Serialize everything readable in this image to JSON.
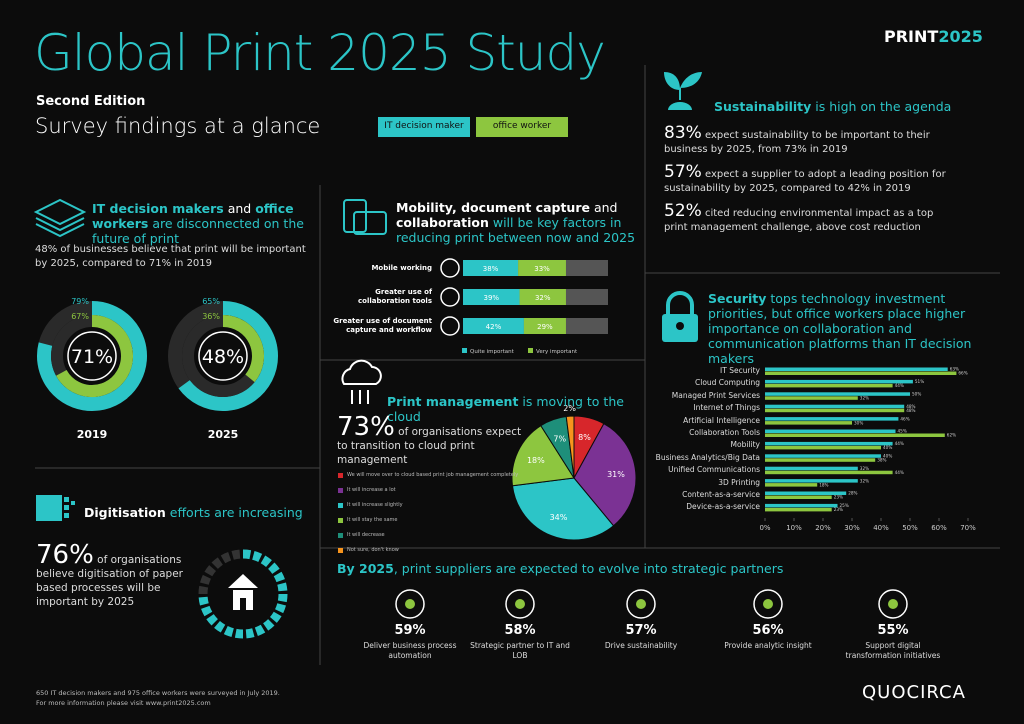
{
  "header": {
    "title": "Global Print 2025 Study",
    "edition": "Second Edition",
    "subtitle": "Survey findings at a glance",
    "brand": [
      "PRINT",
      "2025"
    ]
  },
  "disconnect": {
    "heading": [
      "IT decision makers",
      " and ",
      "office workers",
      " are disconnected on the future of print"
    ],
    "text": "48% of businesses believe that print will be important by 2025, compared to 71% in 2019"
  },
  "digitisation": {
    "heading": [
      "Digitisation",
      " efforts are increasing"
    ],
    "stat": "76%",
    "text": "of organisations believe digitisation of paper based processes will be important by 2025"
  },
  "mobility": {
    "heading": [
      "Mobility, document capture",
      " and ",
      "collaboration",
      " will be key factors in reducing print between now and 2025"
    ]
  },
  "cloud": {
    "heading": [
      "Print management",
      " is moving to the cloud"
    ],
    "stat": "73%",
    "text": "of organisations expect to transition to cloud print management"
  },
  "sustainability": {
    "heading": [
      "Sustainability",
      " is high on the agenda"
    ],
    "items": [
      {
        "stat": "83%",
        "text": "expect sustainability to be important to their business by 2025, from 73% in 2019"
      },
      {
        "stat": "57%",
        "text": "expect a supplier to adopt a leading position for sustainability by 2025, compared to 42% in 2019"
      },
      {
        "stat": "52%",
        "text": "cited reducing environmental impact as a top print management challenge, above cost reduction"
      }
    ]
  },
  "security": {
    "heading": [
      "Security",
      " tops technology investment priorities, but office workers place higher importance on collaboration and communication platforms than IT decision makers"
    ]
  },
  "partners": {
    "heading": [
      "By 2025",
      ", print suppliers are expected to evolve into strategic partners"
    ],
    "items": [
      {
        "stat": "59%",
        "text": "Deliver business process automation"
      },
      {
        "stat": "58%",
        "text": "Strategic partner to IT and LOB"
      },
      {
        "stat": "57%",
        "text": "Drive sustainability"
      },
      {
        "stat": "56%",
        "text": "Provide analytic insight"
      },
      {
        "stat": "55%",
        "text": "Support digital transformation initiatives"
      }
    ]
  },
  "footer": {
    "note": [
      "650 IT decision makers and 975 office workers were surveyed in July 2019.",
      "For more information please visit www.print2025.com"
    ],
    "logo": "QUOCIRCA"
  },
  "chart_data": [
    {
      "type": "donut",
      "label": "2019",
      "total": 71,
      "total_label": "71%",
      "track_color": "#2a2a2a",
      "series": [
        {
          "name": "IT decision maker",
          "color": "#2cc5c7",
          "values": [
            79
          ],
          "value_labels": [
            "79%"
          ]
        },
        {
          "name": "office worker",
          "color": "#8dc63f",
          "values": [
            67
          ],
          "value_labels": [
            "67%"
          ]
        }
      ]
    },
    {
      "type": "donut",
      "label": "2025",
      "total": 48,
      "total_label": "48%",
      "track_color": "#2a2a2a",
      "series": [
        {
          "color": "#2cc5c7",
          "values": [
            65
          ],
          "value_labels": [
            "65%"
          ]
        },
        {
          "color": "#8dc63f",
          "values": [
            36
          ],
          "value_labels": [
            "36%"
          ]
        }
      ]
    },
    {
      "type": "stacked-bar",
      "categories": [
        "Mobile working",
        "Greater use of collaboration tools",
        "Greater use of document capture and workflow"
      ],
      "series": [
        {
          "name": "Quite important",
          "color": "#2cc5c7",
          "values": [
            38,
            39,
            42
          ],
          "value_labels": [
            "38%",
            "39%",
            "42%"
          ]
        },
        {
          "name": "Very important",
          "color": "#8dc63f",
          "values": [
            33,
            32,
            29
          ],
          "value_labels": [
            "33%",
            "32%",
            "29%"
          ]
        }
      ],
      "xlim": [
        0,
        100
      ],
      "track_color": "#555555"
    },
    {
      "type": "pie",
      "categories": [
        "We will move over to cloud based print job management completely",
        "It will increase a lot",
        "It will increase slightly",
        "It will stay the same",
        "It will decrease",
        "Not sure, don't know"
      ],
      "values": [
        8,
        31,
        34,
        18,
        7,
        2
      ],
      "value_labels": [
        "8%",
        "31%",
        "34%",
        "18%",
        "7%",
        "2%"
      ],
      "colors": [
        "#d7262b",
        "#7b3294",
        "#2cc5c7",
        "#8dc63f",
        "#1e8f7a",
        "#f7941d"
      ]
    },
    {
      "type": "grouped-bar",
      "categories": [
        "IT Security",
        "Cloud Computing",
        "Managed Print Services",
        "Internet of Things",
        "Artificial Intelligence",
        "Collaboration Tools",
        "Mobility",
        "Business Analytics/Big Data",
        "Unified Communications",
        "3D Printing",
        "Content-as-a-service",
        "Device-as-a-service"
      ],
      "series": [
        {
          "color": "#2cc5c7",
          "values": [
            63,
            51,
            50,
            48,
            46,
            45,
            44,
            40,
            32,
            32,
            28,
            25
          ],
          "value_labels": [
            "63%",
            "51%",
            "50%",
            "48%",
            "46%",
            "45%",
            "44%",
            "40%",
            "32%",
            "32%",
            "28%",
            "25%"
          ]
        },
        {
          "color": "#8dc63f",
          "values": [
            66,
            44,
            32,
            48,
            30,
            62,
            40,
            38,
            44,
            18,
            23,
            23
          ],
          "value_labels": [
            "66%",
            "44%",
            "32%",
            "48%",
            "30%",
            "62%",
            "40%",
            "38%",
            "44%",
            "18%",
            "23%",
            "23%"
          ]
        }
      ],
      "xlim": [
        0,
        70
      ],
      "xticks": [
        {
          "value": 0,
          "label": "0%"
        },
        {
          "value": 10,
          "label": "10%"
        },
        {
          "value": 20,
          "label": "20%"
        },
        {
          "value": 30,
          "label": "30%"
        },
        {
          "value": 40,
          "label": "40%"
        },
        {
          "value": 50,
          "label": "50%"
        },
        {
          "value": 60,
          "label": "60%"
        },
        {
          "value": 70,
          "label": "70%"
        }
      ]
    }
  ]
}
